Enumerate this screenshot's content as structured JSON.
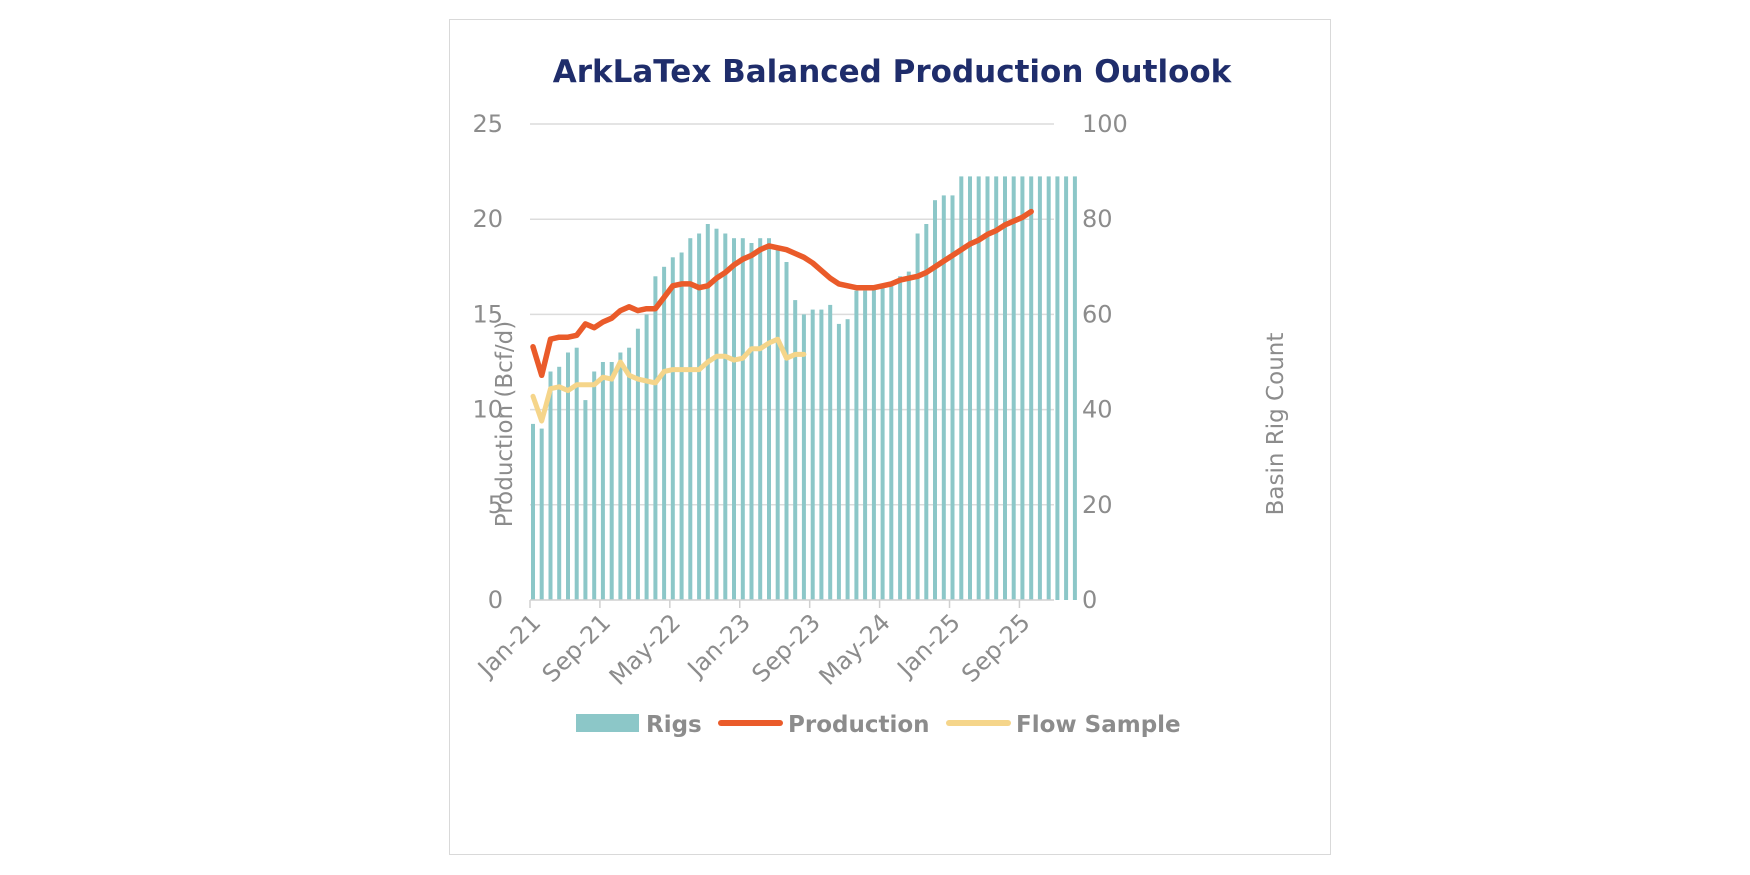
{
  "chart_data": {
    "type": "bar",
    "title": "ArkLaTex Balanced Production Outlook",
    "ylabel": "Production (Bcf/d)",
    "y2label": "Basin Rig Count",
    "ylim": [
      0,
      25
    ],
    "y2lim": [
      0,
      100
    ],
    "yticks": [
      "0",
      "5",
      "10",
      "15",
      "20",
      "25"
    ],
    "y2ticks": [
      "0",
      "20",
      "40",
      "60",
      "80",
      "100"
    ],
    "xtick_labels": [
      "Jan-21",
      "Sep-21",
      "May-22",
      "Jan-23",
      "Sep-23",
      "May-24",
      "Jan-25",
      "Sep-25"
    ],
    "x_start": "Jan-21",
    "x_end": "Jan-26",
    "grid": true,
    "legend_position": "bottom",
    "colors": {
      "rigs": "#8cc7c8",
      "production": "#ea5b2a",
      "flow_sample": "#f5d58a",
      "title": "#1f2d6b",
      "text": "#8c8c8c",
      "grid": "#dcdcdc"
    },
    "series": [
      {
        "name": "Rigs",
        "type": "bar",
        "axis": "right",
        "values": [
          37,
          36,
          48,
          49,
          52,
          53,
          42,
          48,
          50,
          50,
          52,
          53,
          57,
          60,
          68,
          70,
          72,
          73,
          76,
          77,
          79,
          78,
          77,
          76,
          76,
          75,
          76,
          76,
          74,
          71,
          63,
          60,
          61,
          61,
          62,
          58,
          59,
          65,
          65,
          66,
          66,
          66,
          68,
          69,
          77,
          79,
          84,
          85,
          85,
          89,
          89,
          89,
          89,
          89,
          89,
          89,
          89,
          89,
          89,
          89,
          89,
          89,
          89
        ]
      },
      {
        "name": "Production",
        "type": "line",
        "axis": "left",
        "values": [
          13.3,
          11.8,
          13.7,
          13.8,
          13.8,
          13.9,
          14.5,
          14.3,
          14.6,
          14.8,
          15.2,
          15.4,
          15.2,
          15.3,
          15.3,
          15.9,
          16.5,
          16.6,
          16.6,
          16.4,
          16.5,
          16.9,
          17.2,
          17.6,
          17.9,
          18.1,
          18.4,
          18.6,
          18.5,
          18.4,
          18.2,
          18.0,
          17.7,
          17.3,
          16.9,
          16.6,
          16.5,
          16.4,
          16.4,
          16.4,
          16.5,
          16.6,
          16.8,
          16.9,
          17.0,
          17.2,
          17.5,
          17.8,
          18.1,
          18.4,
          18.7,
          18.9,
          19.2,
          19.4,
          19.7,
          19.9,
          20.1,
          20.4
        ]
      },
      {
        "name": "Flow Sample",
        "type": "line",
        "axis": "left",
        "values": [
          10.7,
          9.4,
          11.1,
          11.2,
          11.0,
          11.3,
          11.3,
          11.3,
          11.7,
          11.6,
          12.5,
          11.8,
          11.6,
          11.5,
          11.4,
          12.0,
          12.1,
          12.1,
          12.1,
          12.1,
          12.5,
          12.8,
          12.8,
          12.6,
          12.7,
          13.2,
          13.2,
          13.5,
          13.7,
          12.7,
          12.9,
          12.9
        ]
      }
    ]
  }
}
